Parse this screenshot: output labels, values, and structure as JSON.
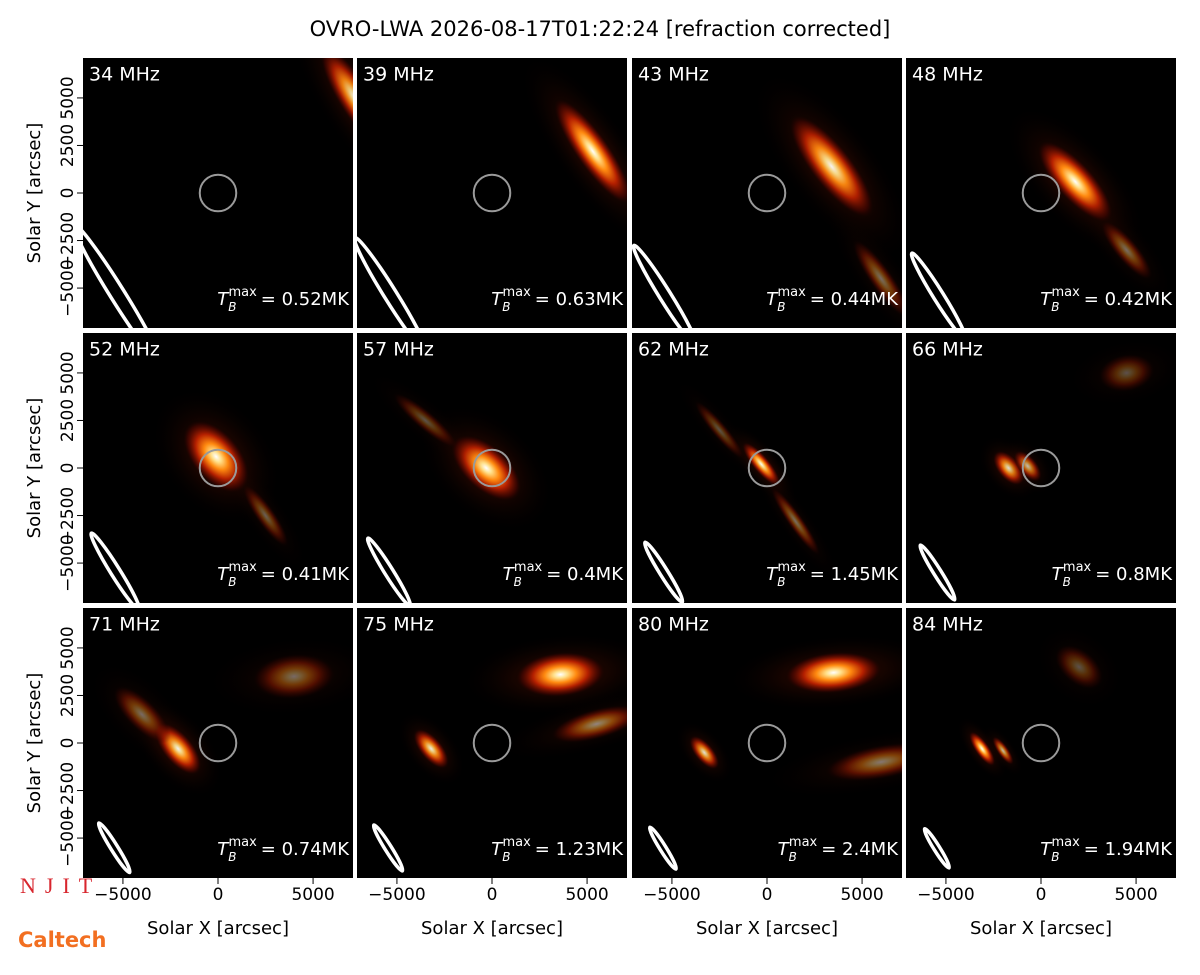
{
  "title": "OVRO-LWA 2026-08-17T01:22:24 [refraction corrected]",
  "tb_symbol": {
    "base": "T",
    "sub": "B",
    "sup": "max"
  },
  "logos": [
    "NJIT",
    "Caltech"
  ],
  "chart_data": [
    {
      "type": "image",
      "title": "34 MHz",
      "tb_max": 0.52,
      "tb_max_label": "= 0.52MK",
      "xlim": [
        -7100,
        7100
      ],
      "ylim": [
        -7100,
        7100
      ],
      "yticks": [
        {
          "value": -5000,
          "label": "−5000"
        },
        {
          "value": -2500,
          "label": "−2500"
        },
        0,
        2500,
        5000
      ],
      "ylabel": "Solar Y [arcsec]"
    },
    {
      "type": "image",
      "title": "39 MHz",
      "tb_max": 0.63,
      "tb_max_label": "= 0.63MK",
      "xlim": [
        -7100,
        7100
      ],
      "ylim": [
        -7100,
        7100
      ]
    },
    {
      "type": "image",
      "title": "43 MHz",
      "tb_max": 0.44,
      "tb_max_label": "= 0.44MK",
      "xlim": [
        -7100,
        7100
      ],
      "ylim": [
        -7100,
        7100
      ]
    },
    {
      "type": "image",
      "title": "48 MHz",
      "tb_max": 0.42,
      "tb_max_label": "= 0.42MK",
      "xlim": [
        -7100,
        7100
      ],
      "ylim": [
        -7100,
        7100
      ]
    },
    {
      "type": "image",
      "title": "52 MHz",
      "tb_max": 0.41,
      "tb_max_label": "= 0.41MK",
      "xlim": [
        -7100,
        7100
      ],
      "ylim": [
        -7100,
        7100
      ],
      "yticks": [
        {
          "value": -5000,
          "label": "−5000"
        },
        {
          "value": -2500,
          "label": "−2500"
        },
        0,
        2500,
        5000
      ],
      "ylabel": "Solar Y [arcsec]"
    },
    {
      "type": "image",
      "title": "57 MHz",
      "tb_max": 0.4,
      "tb_max_label": "= 0.4MK",
      "xlim": [
        -7100,
        7100
      ],
      "ylim": [
        -7100,
        7100
      ]
    },
    {
      "type": "image",
      "title": "62 MHz",
      "tb_max": 1.45,
      "tb_max_label": "= 1.45MK",
      "xlim": [
        -7100,
        7100
      ],
      "ylim": [
        -7100,
        7100
      ]
    },
    {
      "type": "image",
      "title": "66 MHz",
      "tb_max": 0.8,
      "tb_max_label": "= 0.8MK",
      "xlim": [
        -7100,
        7100
      ],
      "ylim": [
        -7100,
        7100
      ]
    },
    {
      "type": "image",
      "title": "71 MHz",
      "tb_max": 0.74,
      "tb_max_label": "= 0.74MK",
      "xlim": [
        -7100,
        7100
      ],
      "ylim": [
        -7100,
        7100
      ],
      "yticks": [
        {
          "value": -5000,
          "label": "−5000"
        },
        {
          "value": -2500,
          "label": "−2500"
        },
        0,
        2500,
        5000
      ],
      "ylabel": "Solar Y [arcsec]",
      "xticks": [
        {
          "value": -5000,
          "label": "−5000"
        },
        0,
        5000
      ],
      "xlabel": "Solar X [arcsec]"
    },
    {
      "type": "image",
      "title": "75 MHz",
      "tb_max": 1.23,
      "tb_max_label": "= 1.23MK",
      "xlim": [
        -7100,
        7100
      ],
      "ylim": [
        -7100,
        7100
      ],
      "xticks": [
        {
          "value": -5000,
          "label": "−5000"
        },
        0,
        5000
      ],
      "xlabel": "Solar X [arcsec]"
    },
    {
      "type": "image",
      "title": "80 MHz",
      "tb_max": 2.4,
      "tb_max_label": "= 2.4MK",
      "xlim": [
        -7100,
        7100
      ],
      "ylim": [
        -7100,
        7100
      ],
      "xticks": [
        {
          "value": -5000,
          "label": "−5000"
        },
        0,
        5000
      ],
      "xlabel": "Solar X [arcsec]"
    },
    {
      "type": "image",
      "title": "84 MHz",
      "tb_max": 1.94,
      "tb_max_label": "= 1.94MK",
      "xlim": [
        -7100,
        7100
      ],
      "ylim": [
        -7100,
        7100
      ],
      "xticks": [
        {
          "value": -5000,
          "label": "−5000"
        },
        0,
        5000
      ],
      "xlabel": "Solar X [arcsec]"
    }
  ]
}
